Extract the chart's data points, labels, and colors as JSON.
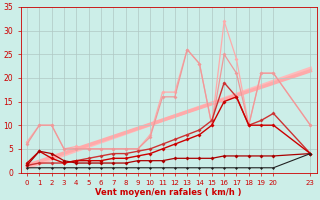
{
  "bg_color": "#cceee8",
  "grid_color": "#b0c8c4",
  "xlabel": "Vent moyen/en rafales ( km/h )",
  "xlabel_color": "#cc0000",
  "tick_color": "#cc0000",
  "xlim": [
    -0.5,
    23.5
  ],
  "ylim": [
    0,
    35
  ],
  "xticks": [
    0,
    1,
    2,
    3,
    4,
    5,
    6,
    7,
    8,
    9,
    10,
    11,
    12,
    13,
    14,
    15,
    16,
    17,
    18,
    19,
    20,
    23
  ],
  "yticks": [
    0,
    5,
    10,
    15,
    20,
    25,
    30,
    35
  ],
  "series": [
    {
      "x": [
        0,
        1,
        2,
        3,
        4,
        5,
        6,
        7,
        8,
        9,
        10,
        11,
        12,
        13,
        14,
        15,
        16,
        17,
        18,
        19,
        20,
        23
      ],
      "y": [
        6.5,
        10,
        10,
        5,
        5.5,
        5,
        5,
        5,
        5,
        5,
        8,
        17,
        17,
        26,
        23,
        10,
        32,
        24,
        10,
        21,
        21,
        10
      ],
      "color": "#ffaaaa",
      "lw": 0.9,
      "marker": "D",
      "ms": 2.0,
      "zorder": 2
    },
    {
      "x": [
        0,
        1,
        2,
        3,
        4,
        5,
        6,
        7,
        8,
        9,
        10,
        11,
        12,
        13,
        14,
        15,
        16,
        17,
        18,
        19,
        20,
        23
      ],
      "y": [
        6,
        10,
        10,
        5,
        5,
        5,
        5,
        5,
        5,
        5,
        7.5,
        16,
        16,
        26,
        23,
        10,
        25,
        21,
        10,
        21,
        21,
        10
      ],
      "color": "#ee9999",
      "lw": 0.9,
      "marker": "D",
      "ms": 2.0,
      "zorder": 3
    },
    {
      "x": [
        0,
        23
      ],
      "y": [
        1.0,
        22.0
      ],
      "color": "#ffbbbb",
      "lw": 2.5,
      "marker": null,
      "ms": 0,
      "zorder": 1
    },
    {
      "x": [
        0,
        23
      ],
      "y": [
        1.5,
        21.5
      ],
      "color": "#ffaaaa",
      "lw": 2.5,
      "marker": null,
      "ms": 0,
      "zorder": 1
    },
    {
      "x": [
        0,
        1,
        2,
        3,
        4,
        5,
        6,
        7,
        8,
        9,
        10,
        11,
        12,
        13,
        14,
        15,
        16,
        17,
        18,
        19,
        20,
        23
      ],
      "y": [
        1.5,
        2,
        2,
        2,
        2.5,
        3,
        3.5,
        4,
        4,
        4.5,
        5,
        6,
        7,
        8,
        9,
        11,
        19,
        16,
        10,
        11,
        12.5,
        4
      ],
      "color": "#cc3333",
      "lw": 1.0,
      "marker": "D",
      "ms": 2.0,
      "zorder": 4
    },
    {
      "x": [
        0,
        1,
        2,
        3,
        4,
        5,
        6,
        7,
        8,
        9,
        10,
        11,
        12,
        13,
        14,
        15,
        16,
        17,
        18,
        19,
        20,
        23
      ],
      "y": [
        2,
        4.5,
        3,
        2,
        2.5,
        2.5,
        2.5,
        3,
        3,
        3.5,
        4,
        5,
        6,
        7,
        8,
        10,
        15,
        16,
        10,
        10,
        10,
        4
      ],
      "color": "#cc0000",
      "lw": 1.0,
      "marker": "D",
      "ms": 2.0,
      "zorder": 5
    },
    {
      "x": [
        0,
        1,
        2,
        3,
        4,
        5,
        6,
        7,
        8,
        9,
        10,
        11,
        12,
        13,
        14,
        15,
        16,
        17,
        18,
        19,
        20,
        23
      ],
      "y": [
        1.5,
        4.5,
        4,
        2.5,
        2,
        2,
        2,
        2,
        2,
        2.5,
        2.5,
        2.5,
        3,
        3,
        3,
        3,
        3.5,
        3.5,
        3.5,
        3.5,
        3.5,
        4
      ],
      "color": "#aa0000",
      "lw": 0.9,
      "marker": "D",
      "ms": 2.0,
      "zorder": 6
    },
    {
      "x": [
        0,
        1,
        2,
        3,
        4,
        5,
        6,
        7,
        8,
        9,
        10,
        11,
        12,
        13,
        14,
        15,
        16,
        17,
        18,
        19,
        20,
        23
      ],
      "y": [
        1,
        1,
        1,
        1,
        1,
        1,
        1,
        1,
        1,
        1,
        1,
        1,
        1,
        1,
        1,
        1,
        1,
        1,
        1,
        1,
        1,
        4
      ],
      "color": "#222222",
      "lw": 0.8,
      "marker": "D",
      "ms": 1.5,
      "zorder": 7
    }
  ]
}
